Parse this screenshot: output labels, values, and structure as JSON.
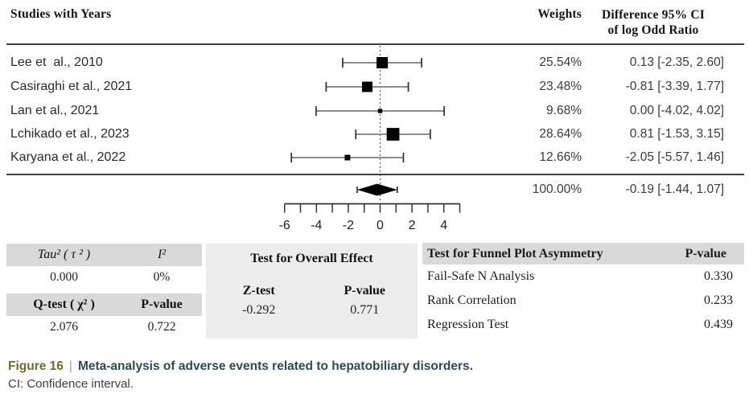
{
  "header": {
    "studies_col": "Studies with Years",
    "weights_col": "Weights",
    "diff_line1": "Difference 95% CI",
    "diff_line2": "of log Odd Ratio"
  },
  "chart_data": {
    "type": "forest",
    "effect_measure": "Difference of log Odd Ratio",
    "axis": {
      "min": -6,
      "max": 5,
      "tick_step": 1,
      "label_ticks": [
        -6,
        -4,
        -2,
        0,
        2,
        4
      ],
      "zero_line": 0
    },
    "studies": [
      {
        "label": "Lee et  al., 2010",
        "weight_pct": 25.54,
        "estimate": 0.13,
        "ci_low": -2.35,
        "ci_high": 2.6,
        "weight_text": "25.54%",
        "diff_text": "0.13 [-2.35, 2.60]"
      },
      {
        "label": "Casiraghi et al., 2021",
        "weight_pct": 23.48,
        "estimate": -0.81,
        "ci_low": -3.39,
        "ci_high": 1.77,
        "weight_text": "23.48%",
        "diff_text": "-0.81 [-3.39, 1.77]"
      },
      {
        "label": "Lan et al., 2021",
        "weight_pct": 9.68,
        "estimate": 0.0,
        "ci_low": -4.02,
        "ci_high": 4.02,
        "weight_text": "9.68%",
        "diff_text": "0.00 [-4.02, 4.02]"
      },
      {
        "label": "Lchikado et al., 2023",
        "weight_pct": 28.64,
        "estimate": 0.81,
        "ci_low": -1.53,
        "ci_high": 3.15,
        "weight_text": "28.64%",
        "diff_text": "0.81 [-1.53, 3.15]"
      },
      {
        "label": "Karyana et al., 2022",
        "weight_pct": 12.66,
        "estimate": -2.05,
        "ci_low": -5.57,
        "ci_high": 1.46,
        "weight_text": "12.66%",
        "diff_text": "-2.05 [-5.57, 1.46]"
      }
    ],
    "summary": {
      "weight_pct": 100.0,
      "estimate": -0.19,
      "ci_low": -1.44,
      "ci_high": 1.07,
      "weight_text": "100.00%",
      "diff_text": "-0.19 [-1.44, 1.07]"
    }
  },
  "stats": {
    "heterogeneity": {
      "tau2_label": "Tau² ( τ ² )",
      "i2_label": "I²",
      "tau2_value": "0.000",
      "i2_value": "0%",
      "qtest_label": "Q-test ( χ² )",
      "pvalue_label": "P-value",
      "qtest_value": "2.076",
      "qtest_pvalue": "0.722"
    },
    "overall": {
      "title": "Test for Overall Effect",
      "ztest_label": "Z-test",
      "pvalue_label": "P-value",
      "z_value": "-0.292",
      "p_value": "0.771"
    },
    "funnel": {
      "title": "Test for Funnel Plot Asymmetry",
      "pvalue_label": "P-value",
      "rows": [
        {
          "label": "Fail-Safe N Analysis",
          "value": "0.330"
        },
        {
          "label": "Rank Correlation",
          "value": "0.233"
        },
        {
          "label": "Regression Test",
          "value": "0.439"
        }
      ]
    }
  },
  "caption": {
    "figure_label": "Figure 16",
    "separator": "|",
    "title": "Meta-analysis of adverse events related to hepatobiliary disorders.",
    "note": "CI: Confidence interval."
  },
  "colors": {
    "figure_label": "#6d6e2e",
    "caption_title": "#2d4a56",
    "table_header_bg": "#d9d9d9",
    "panel_bg": "#ececec",
    "marker": "#000000",
    "whisker": "#7d7d7d",
    "rule": "#3e3e3e"
  }
}
